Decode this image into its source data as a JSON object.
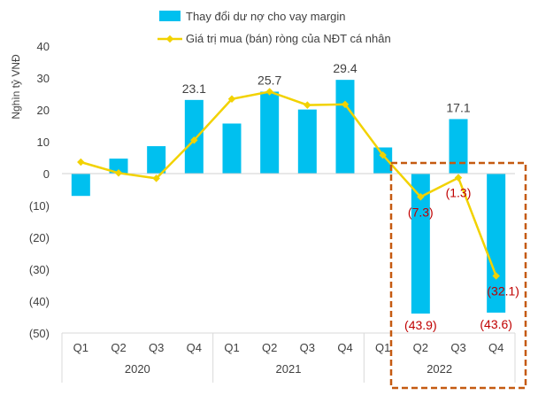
{
  "chart_data": {
    "type": "bar",
    "ylabel": "Nghìn tỷ VNĐ",
    "ylim": [
      -50,
      40
    ],
    "yticks": [
      40,
      30,
      20,
      10,
      0,
      -10,
      -20,
      -30,
      -40,
      -50
    ],
    "ytick_labels": [
      "40",
      "30",
      "20",
      "10",
      "0",
      "(10)",
      "(20)",
      "(30)",
      "(40)",
      "(50)"
    ],
    "categories": [
      "Q1",
      "Q2",
      "Q3",
      "Q4",
      "Q1",
      "Q2",
      "Q3",
      "Q4",
      "Q1",
      "Q2",
      "Q3",
      "Q4"
    ],
    "year_groups": [
      {
        "label": "2020",
        "count": 4
      },
      {
        "label": "2021",
        "count": 4
      },
      {
        "label": "2022",
        "count": 4
      }
    ],
    "legend_position": "top",
    "series": [
      {
        "name": "Thay đổi dư nợ cho vay margin",
        "type": "bar",
        "color": "#00C0EF",
        "values": [
          -7,
          4.7,
          8.6,
          23.1,
          15.7,
          25.7,
          20.1,
          29.4,
          8.2,
          -43.9,
          17.1,
          -43.6
        ]
      },
      {
        "name": "Giá trị mua (bán) ròng của NĐT cá nhân",
        "type": "line",
        "color": "#F2D200",
        "values": [
          3.6,
          0.2,
          -1.5,
          10.5,
          23.4,
          25.7,
          21.5,
          21.7,
          5.8,
          -7.3,
          -1.3,
          -32.1
        ]
      }
    ],
    "data_labels": [
      {
        "text": "23.1",
        "series": 0,
        "index": 3,
        "color": "#404040"
      },
      {
        "text": "25.7",
        "series": 0,
        "index": 5,
        "color": "#404040"
      },
      {
        "text": "29.4",
        "series": 0,
        "index": 7,
        "color": "#404040"
      },
      {
        "text": "17.1",
        "series": 0,
        "index": 10,
        "color": "#404040"
      },
      {
        "text": "(43.9)",
        "series": 0,
        "index": 9,
        "color": "#C00000"
      },
      {
        "text": "(43.6)",
        "series": 0,
        "index": 11,
        "color": "#C00000"
      },
      {
        "text": "(7.3)",
        "series": 1,
        "index": 9,
        "color": "#C00000"
      },
      {
        "text": "(1.3)",
        "series": 1,
        "index": 10,
        "color": "#C00000"
      },
      {
        "text": "(32.1)",
        "series": 1,
        "index": 11,
        "color": "#C00000"
      }
    ],
    "highlight_box": {
      "indices": [
        9,
        10,
        11
      ],
      "color": "#C55A11",
      "style": "dashed"
    },
    "grid": false
  }
}
